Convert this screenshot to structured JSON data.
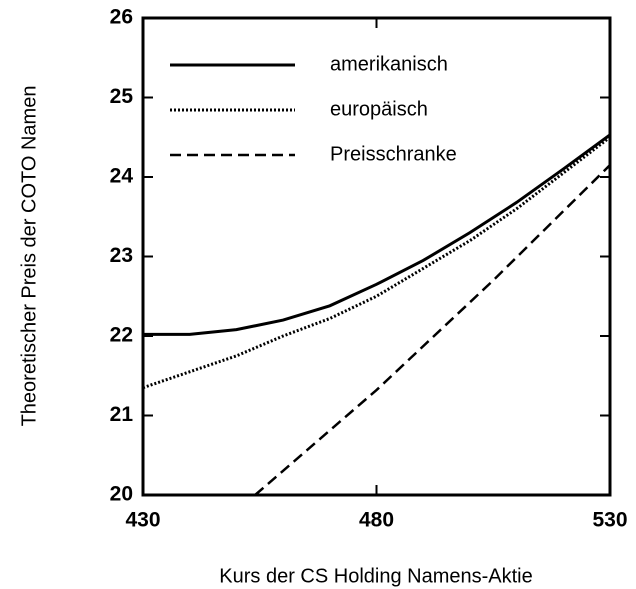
{
  "chart_data": {
    "type": "line",
    "xlabel": "Kurs der CS Holding Namens-Aktie",
    "ylabel": "Theoretischer Preis der COTO Namen",
    "xlim": [
      430,
      530
    ],
    "xticks": [
      430,
      480,
      530
    ],
    "ylim": [
      20,
      26
    ],
    "yticks": [
      20,
      21,
      22,
      23,
      24,
      25,
      26
    ],
    "legend": "upper left",
    "series": [
      {
        "name": "amerikanisch",
        "color": "#000000",
        "style": "solid",
        "x": [
          430,
          440,
          450,
          460,
          470,
          480,
          490,
          500,
          510,
          520,
          530
        ],
        "values": [
          22.02,
          22.02,
          22.08,
          22.2,
          22.38,
          22.65,
          22.95,
          23.3,
          23.68,
          24.1,
          24.53
        ]
      },
      {
        "name": "europäisch",
        "color": "#000000",
        "style": "dotted",
        "x": [
          430,
          440,
          450,
          460,
          470,
          480,
          490,
          500,
          510,
          520,
          530
        ],
        "values": [
          21.35,
          21.55,
          21.75,
          22.0,
          22.22,
          22.5,
          22.85,
          23.2,
          23.6,
          24.05,
          24.5
        ]
      },
      {
        "name": "Preisschranke",
        "color": "#000000",
        "style": "dashed",
        "x": [
          454,
          480,
          505,
          530
        ],
        "values": [
          20,
          21.32,
          22.7,
          24.15
        ]
      }
    ]
  }
}
